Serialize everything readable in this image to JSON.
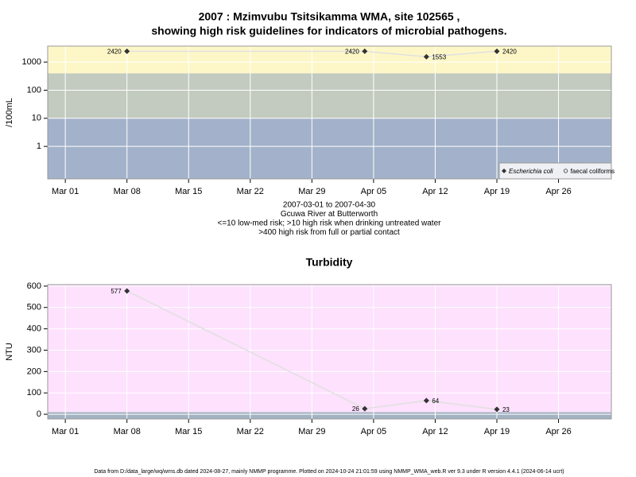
{
  "chart_data": [
    {
      "type": "line",
      "title": [
        "2007 : Mzimvubu Tsitsikamma WMA, site 102565 ,",
        "showing high risk guidelines for indicators of microbial pathogens."
      ],
      "notes": [
        "2007-03-01 to 2007-04-30",
        "Gcuwa River at Butterworth",
        "<=10 low-med risk; >10 high risk when drinking untreated water",
        ">400 high risk from full or partial contact"
      ],
      "ylabel": "/100mL",
      "log_y": true,
      "grid": true,
      "legend": "bottom-right",
      "x": [
        "03-08",
        "04-04",
        "04-11",
        "04-19"
      ],
      "xlim": [
        "02-27",
        "05-02"
      ],
      "xticks": [
        {
          "value": "03-01",
          "label": "Mar 01"
        },
        {
          "value": "03-08",
          "label": "Mar 08"
        },
        {
          "value": "03-15",
          "label": "Mar 15"
        },
        {
          "value": "03-22",
          "label": "Mar 22"
        },
        {
          "value": "03-29",
          "label": "Mar 29"
        },
        {
          "value": "04-05",
          "label": "Apr 05"
        },
        {
          "value": "04-12",
          "label": "Apr 12"
        },
        {
          "value": "04-19",
          "label": "Apr 19"
        },
        {
          "value": "04-26",
          "label": "Apr 26"
        }
      ],
      "ylim": [
        0.07,
        3700
      ],
      "yticks": [
        1,
        10,
        100,
        1000
      ],
      "bands": [
        {
          "to": 10,
          "color": "#a3b2ca"
        },
        {
          "from": 10,
          "to": 400,
          "color": "#c3cbc0"
        },
        {
          "from": 400,
          "color": "#fdf7c8"
        }
      ],
      "series": [
        {
          "name": "Escherichia coli",
          "color": "#333333",
          "values": [
            2420,
            2420,
            1553,
            2420
          ]
        },
        {
          "name": "faecal coliforms",
          "color": "#555555",
          "values": [
            null,
            null,
            null,
            null
          ]
        }
      ]
    },
    {
      "type": "line",
      "title": [
        "Turbidity"
      ],
      "ylabel": "NTU",
      "log_y": false,
      "grid": true,
      "x": [
        "03-08",
        "04-04",
        "04-11",
        "04-19"
      ],
      "xlim": [
        "02-27",
        "05-02"
      ],
      "xticks": [
        {
          "value": "03-01",
          "label": "Mar 01"
        },
        {
          "value": "03-08",
          "label": "Mar 08"
        },
        {
          "value": "03-15",
          "label": "Mar 15"
        },
        {
          "value": "03-22",
          "label": "Mar 22"
        },
        {
          "value": "03-29",
          "label": "Mar 29"
        },
        {
          "value": "04-05",
          "label": "Apr 05"
        },
        {
          "value": "04-12",
          "label": "Apr 12"
        },
        {
          "value": "04-19",
          "label": "Apr 19"
        },
        {
          "value": "04-26",
          "label": "Apr 26"
        }
      ],
      "ylim": [
        -22,
        607
      ],
      "yticks": [
        0,
        100,
        200,
        300,
        400,
        500,
        600
      ],
      "bands": [
        {
          "to": 10,
          "color": "#a3b2c2"
        },
        {
          "from": 10,
          "color": "#fde1fd"
        }
      ],
      "series": [
        {
          "name": "Turbidity",
          "color": "#333333",
          "values": [
            577,
            26,
            64,
            23
          ]
        }
      ]
    }
  ],
  "footer": "Data from D:/data_large/wq/wms.db dated 2024-08-27, mainly NMMP programme. Plotted on 2024-10-24 21:01:59 using NMMP_WMA_web.R ver 9.3 under R version 4.4.1 (2024-06-14 ucrt)"
}
